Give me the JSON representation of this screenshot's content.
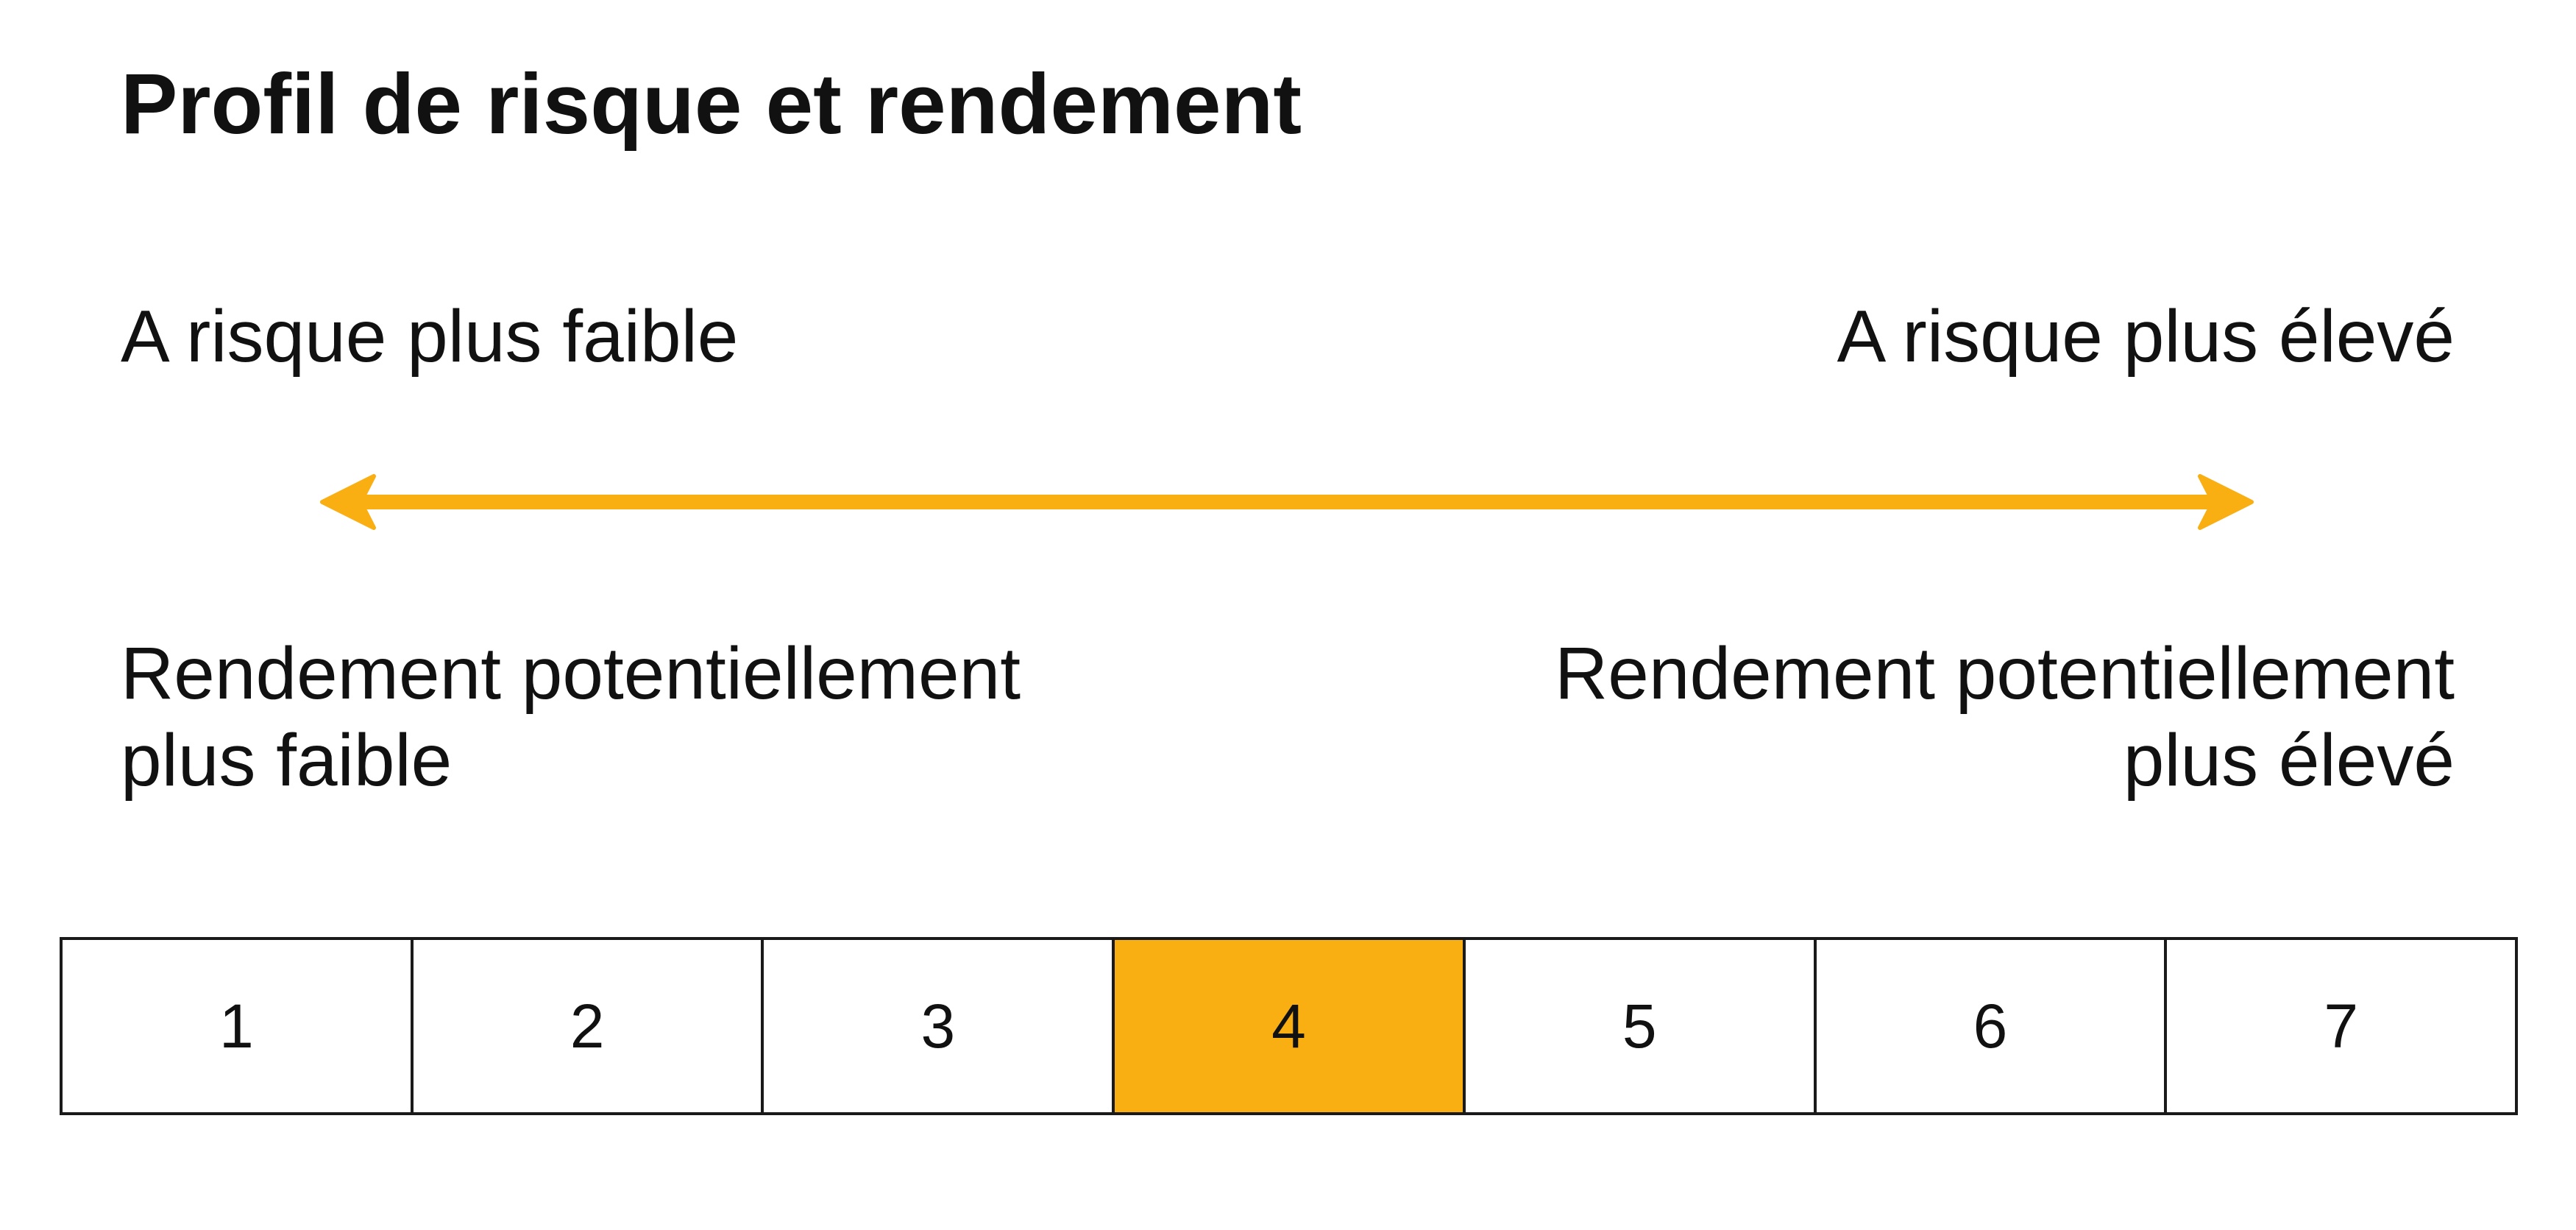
{
  "title": "Profil de risque et rendement",
  "risk": {
    "low_label": "A risque plus faible",
    "high_label": "A risque plus élevé"
  },
  "return": {
    "low_lines": [
      "Rendement potentiellement",
      "plus faible"
    ],
    "high_lines": [
      "Rendement potentiellement",
      "plus élevé"
    ]
  },
  "scale": {
    "levels": [
      "1",
      "2",
      "3",
      "4",
      "5",
      "6",
      "7"
    ],
    "selected": 4,
    "highlight_color": "#f9ae12"
  },
  "arrow_color": "#f9ae12"
}
